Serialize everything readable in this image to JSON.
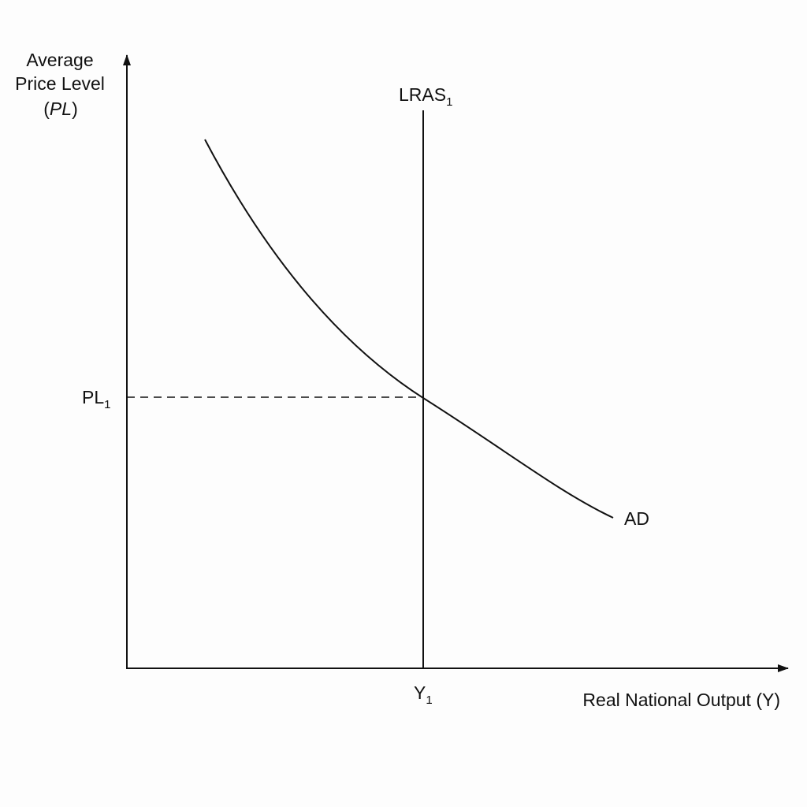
{
  "y_axis_label": {
    "line1": "Average",
    "line2": "Price Level",
    "line3": {
      "open": "(",
      "italic": "PL",
      "close": ")"
    }
  },
  "x_axis_label": "Real National Output (Y)",
  "lras_label": {
    "text": "LRAS",
    "subscript": "1"
  },
  "ad_label": "AD",
  "price_marker": {
    "text": "PL",
    "subscript": "1"
  },
  "output_marker": {
    "text": "Y",
    "subscript": "1"
  }
}
